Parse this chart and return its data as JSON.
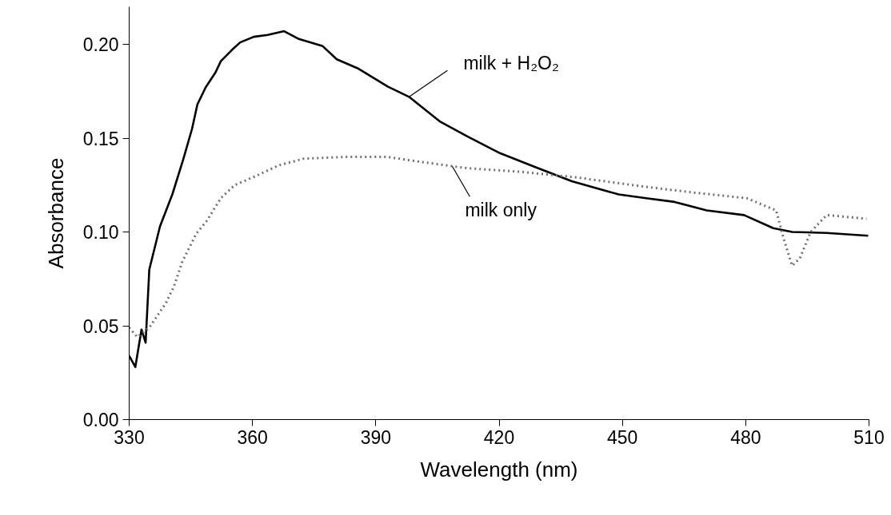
{
  "chart_data": {
    "type": "line",
    "xlabel": "Wavelength (nm)",
    "ylabel": "Absorbance",
    "xlim": [
      330,
      510
    ],
    "xticks": [
      330,
      360,
      390,
      420,
      450,
      480,
      510
    ],
    "ylim": [
      0,
      0.22
    ],
    "yticks": [
      {
        "value": 0,
        "label": "0.00"
      },
      {
        "value": 0.05,
        "label": "0.05"
      },
      {
        "value": 0.1,
        "label": "0.10"
      },
      {
        "value": 0.15,
        "label": "0.15"
      },
      {
        "value": 0.2,
        "label": "0.20"
      }
    ],
    "grid": false,
    "series": [
      {
        "color": "#000000",
        "line_style": "solid",
        "x": [
          330,
          331.5,
          333,
          334,
          334.9,
          337.5,
          340.5,
          343.2,
          345.3,
          346.6,
          348.6,
          351,
          352.3,
          355,
          357,
          360.3,
          363.7,
          367.7,
          371.1,
          377.1,
          380.5,
          385.8,
          392.9,
          398.1,
          405.5,
          412.2,
          420.2,
          428.3,
          437.7,
          449.1,
          455.8,
          462.7,
          470.5,
          479.6,
          486.7,
          491.3,
          499.7,
          509.8
        ],
        "values": [
          0.034,
          0.028,
          0.048,
          0.041,
          0.08,
          0.103,
          0.12,
          0.139,
          0.155,
          0.168,
          0.177,
          0.185,
          0.191,
          0.197,
          0.201,
          0.204,
          0.205,
          0.207,
          0.203,
          0.199,
          0.192,
          0.187,
          0.1775,
          0.172,
          0.159,
          0.151,
          0.142,
          0.135,
          0.127,
          0.12,
          0.118,
          0.116,
          0.1115,
          0.109,
          0.102,
          0.1,
          0.0995,
          0.098
        ]
      },
      {
        "color": "#707070",
        "line_style": "dotted",
        "x": [
          330,
          332,
          334.9,
          338.9,
          340.9,
          342.9,
          346.3,
          348.9,
          352.3,
          355.7,
          361,
          366.4,
          372.4,
          382.5,
          392.9,
          398.8,
          412.2,
          425.6,
          439,
          455.8,
          467.3,
          480.2,
          487.4,
          489.3,
          491.3,
          493.2,
          495.8,
          499.7,
          509.4
        ],
        "values": [
          0.049,
          0.044,
          0.049,
          0.062,
          0.071,
          0.084,
          0.099,
          0.106,
          0.118,
          0.125,
          0.13,
          0.1355,
          0.139,
          0.14,
          0.14,
          0.138,
          0.134,
          0.132,
          0.129,
          0.124,
          0.121,
          0.118,
          0.1115,
          0.096,
          0.082,
          0.086,
          0.1,
          0.109,
          0.107
        ]
      }
    ],
    "annotations": [
      {
        "text": "milk + H₂O₂",
        "x": 398.1,
        "y": 0.172
      },
      {
        "text": "milk only",
        "x": 408.6,
        "y": 0.135
      }
    ]
  }
}
